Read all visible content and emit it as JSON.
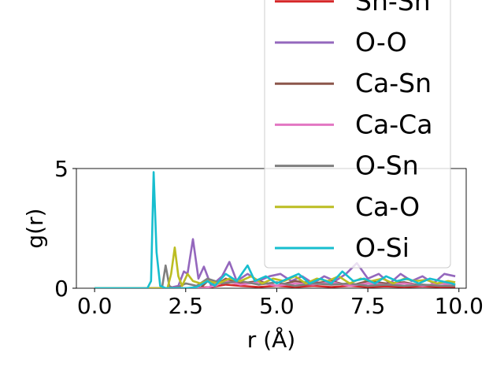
{
  "chart_data": {
    "type": "line",
    "title": "",
    "xlabel": "r (Å)",
    "ylabel": "g(r)",
    "xlim": [
      -0.5,
      10.2
    ],
    "ylim": [
      0,
      5
    ],
    "xticks": [
      0.0,
      2.5,
      5.0,
      7.5,
      10.0
    ],
    "xtick_labels": [
      "0.0",
      "2.5",
      "5.0",
      "7.5",
      "10.0"
    ],
    "yticks": [
      0,
      5
    ],
    "ytick_labels": [
      "0",
      "5"
    ],
    "grid": false,
    "legend_position": "upper-right, overflowing above the axes",
    "series": [
      {
        "name": "Sn-Sn",
        "color": "#d62728",
        "x": [
          0,
          1,
          2,
          2.6,
          3.2,
          3.6,
          4.0,
          4.5,
          5.0,
          5.5,
          6.0,
          6.5,
          7.0,
          7.5,
          8.0,
          8.5,
          9.0,
          9.5,
          9.9
        ],
        "y": [
          0,
          0,
          0,
          0,
          0.05,
          0.15,
          0.1,
          0.05,
          0.1,
          0.05,
          0.1,
          0.05,
          0.1,
          0.05,
          0.08,
          0.05,
          0.08,
          0.05,
          0.06
        ]
      },
      {
        "name": "O-O",
        "color": "#9467bd",
        "x": [
          0,
          1,
          2,
          2.3,
          2.45,
          2.55,
          2.7,
          2.85,
          3.0,
          3.2,
          3.5,
          3.7,
          3.9,
          4.2,
          4.5,
          4.8,
          5.1,
          5.4,
          5.7,
          6.0,
          6.3,
          6.6,
          6.9,
          7.2,
          7.5,
          7.8,
          8.1,
          8.4,
          8.7,
          9.0,
          9.3,
          9.6,
          9.9
        ],
        "y": [
          0,
          0,
          0,
          0.1,
          0.7,
          0.6,
          2.05,
          0.4,
          0.9,
          0.1,
          0.5,
          1.1,
          0.3,
          0.6,
          0.3,
          0.5,
          0.6,
          0.3,
          0.5,
          0.2,
          0.5,
          0.3,
          0.6,
          1.05,
          0.4,
          0.6,
          0.2,
          0.6,
          0.3,
          0.5,
          0.2,
          0.6,
          0.5
        ]
      },
      {
        "name": "Ca-Sn",
        "color": "#8c564b",
        "x": [
          0,
          1,
          2,
          2.9,
          3.1,
          3.3,
          3.6,
          4.0,
          4.5,
          5.0,
          5.5,
          6.0,
          6.5,
          7.0,
          7.5,
          8.0,
          8.5,
          9.0,
          9.5,
          9.9
        ],
        "y": [
          0,
          0,
          0,
          0,
          0.3,
          0.1,
          0.4,
          0.2,
          0.3,
          0.1,
          0.3,
          0.2,
          0.3,
          0.1,
          0.3,
          0.2,
          0.25,
          0.1,
          0.2,
          0.15
        ]
      },
      {
        "name": "Ca-Ca",
        "color": "#e377c2",
        "x": [
          0,
          1,
          2,
          3.0,
          3.3,
          3.6,
          4.0,
          4.5,
          5.0,
          5.5,
          6.0,
          6.5,
          7.0,
          7.5,
          8.0,
          8.5,
          9.0,
          9.5,
          9.9
        ],
        "y": [
          0,
          0,
          0,
          0,
          0.1,
          0.3,
          0.15,
          0.25,
          0.1,
          0.2,
          0.15,
          0.25,
          0.1,
          0.2,
          0.15,
          0.2,
          0.1,
          0.2,
          0.12
        ]
      },
      {
        "name": "O-Sn",
        "color": "#7f7f7f",
        "x": [
          0,
          1,
          1.85,
          1.95,
          2.05,
          2.15,
          2.3,
          2.5,
          2.8,
          3.1,
          3.5,
          4.0,
          4.5,
          5.0,
          5.5,
          6.0,
          6.5,
          7.0,
          7.5,
          8.0,
          8.5,
          9.0,
          9.5,
          9.9
        ],
        "y": [
          0,
          0,
          0,
          0.95,
          0.1,
          0,
          0.05,
          0.2,
          0.1,
          0.4,
          0.2,
          0.3,
          0.15,
          0.25,
          0.1,
          0.2,
          0.15,
          0.2,
          0.1,
          0.15,
          0.1,
          0.15,
          0.1,
          0.1
        ]
      },
      {
        "name": "Ca-O",
        "color": "#bcbd22",
        "x": [
          0,
          1,
          2.0,
          2.1,
          2.2,
          2.3,
          2.4,
          2.55,
          2.7,
          2.9,
          3.1,
          3.4,
          3.7,
          4.0,
          4.3,
          4.6,
          4.9,
          5.2,
          5.5,
          5.8,
          6.1,
          6.4,
          6.7,
          7.0,
          7.3,
          7.6,
          7.9,
          8.2,
          8.5,
          8.8,
          9.1,
          9.4,
          9.7,
          9.9
        ],
        "y": [
          0,
          0,
          0,
          0.6,
          1.7,
          0.5,
          0.1,
          0.6,
          0.3,
          0.2,
          0.3,
          0.2,
          0.4,
          0.3,
          0.5,
          0.2,
          0.4,
          0.3,
          0.5,
          0.2,
          0.4,
          0.3,
          0.5,
          0.2,
          0.4,
          0.3,
          0.4,
          0.2,
          0.4,
          0.3,
          0.35,
          0.2,
          0.3,
          0.25
        ]
      },
      {
        "name": "O-Si",
        "color": "#17becf",
        "x": [
          0,
          1,
          1.45,
          1.55,
          1.62,
          1.7,
          1.8,
          1.95,
          2.2,
          2.5,
          2.8,
          3.1,
          3.3,
          3.6,
          3.9,
          4.2,
          4.4,
          4.7,
          5.0,
          5.3,
          5.6,
          5.9,
          6.2,
          6.5,
          6.8,
          7.1,
          7.4,
          7.7,
          8.0,
          8.3,
          8.6,
          8.9,
          9.2,
          9.5,
          9.8,
          9.9
        ],
        "y": [
          0,
          0,
          0,
          0.3,
          4.85,
          1.5,
          0.1,
          0,
          0,
          0,
          0.05,
          0.3,
          0.1,
          0.6,
          0.3,
          0.95,
          0.3,
          0.5,
          0.2,
          0.4,
          0.6,
          0.2,
          0.4,
          0.2,
          0.7,
          0.3,
          0.4,
          0.2,
          0.5,
          0.3,
          0.4,
          0.2,
          0.4,
          0.3,
          0.2,
          0.15
        ]
      }
    ]
  }
}
